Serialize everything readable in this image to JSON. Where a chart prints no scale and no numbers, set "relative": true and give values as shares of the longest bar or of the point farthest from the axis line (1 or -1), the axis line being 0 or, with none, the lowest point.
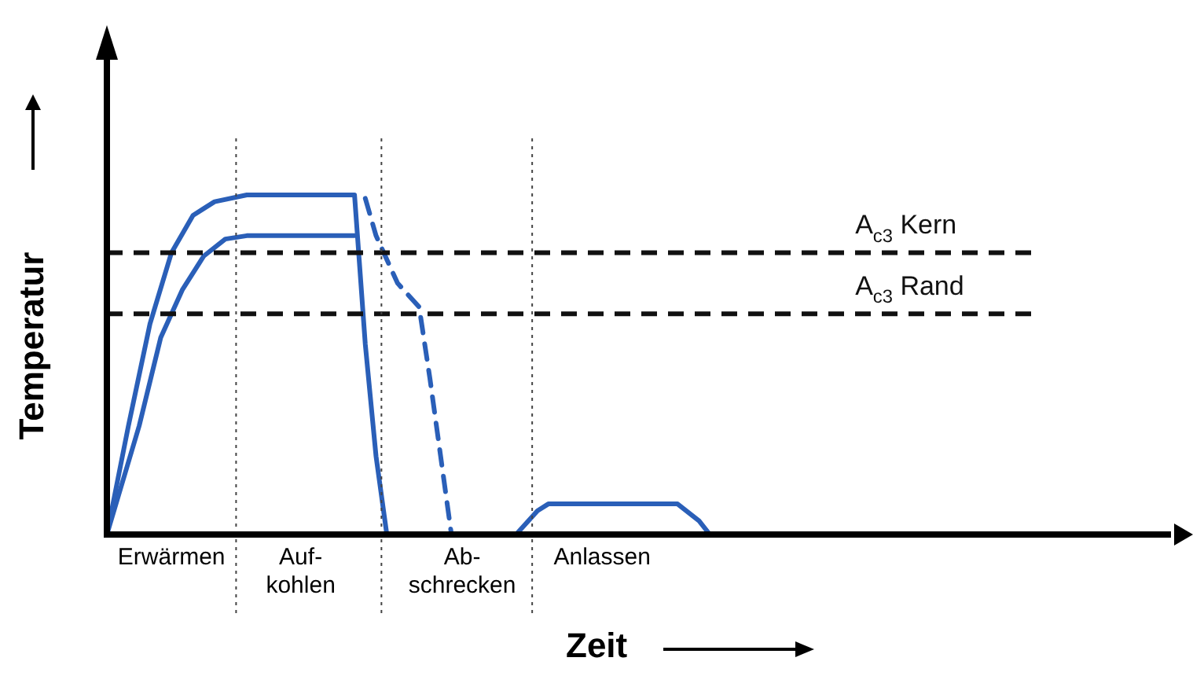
{
  "chart_data": {
    "type": "line",
    "relative": true,
    "xlabel": "Zeit",
    "ylabel": "Temperatur",
    "line_style": "solid",
    "marker": "none",
    "categories": [
      null,
      null,
      null,
      null,
      null,
      null,
      "Erwärmen",
      null,
      null,
      null,
      null,
      null,
      null,
      null,
      null,
      null,
      null,
      null,
      "Auf-\nkohlen",
      null,
      null,
      null,
      null,
      null,
      null,
      null,
      null,
      null,
      null,
      null,
      null,
      null,
      null,
      "Ab-\nschrecken",
      null,
      null,
      null,
      null,
      null,
      null,
      null,
      null,
      null,
      null,
      null,
      null,
      "Anlassen",
      null,
      null,
      null,
      null,
      null,
      null,
      null,
      null,
      null,
      null,
      null,
      null,
      null,
      null,
      null,
      null,
      null,
      null,
      null,
      null,
      null,
      null,
      null,
      null,
      null,
      null,
      null,
      null,
      null,
      null,
      null,
      null,
      null,
      null,
      null,
      null,
      null,
      null,
      null,
      null,
      null,
      null,
      null,
      null,
      null,
      null,
      null,
      null,
      null,
      null,
      null,
      null,
      null,
      null
    ],
    "series": [
      {
        "color": "#2a5fb8",
        "values": [
          0,
          null,
          0.32,
          null,
          0.62,
          null,
          0.83,
          null,
          0.94,
          null,
          0.98,
          null,
          null,
          1,
          null,
          null,
          null,
          null,
          null,
          null,
          null,
          null,
          null,
          1,
          0.56,
          0.23,
          0,
          null,
          null,
          null,
          null,
          null,
          null,
          null,
          null,
          null,
          null,
          null,
          null,
          null,
          null,
          null,
          null,
          null,
          null,
          null,
          null,
          null,
          null,
          null,
          null,
          null,
          null,
          null,
          null,
          null,
          null,
          null,
          null,
          null,
          null,
          null,
          null,
          null,
          null,
          null,
          null,
          null,
          null,
          null,
          null,
          null,
          null,
          null,
          null,
          null,
          null,
          null,
          null,
          null,
          null,
          null,
          null,
          null,
          null,
          null,
          null,
          null,
          null,
          null,
          null,
          null,
          null,
          null,
          null,
          null,
          null,
          null,
          null,
          null,
          null
        ]
      },
      {
        "color": "#2a5fb8",
        "values": [
          0,
          null,
          null,
          0.32,
          null,
          0.58,
          null,
          0.72,
          null,
          0.82,
          null,
          0.87,
          null,
          0.88,
          null,
          null,
          null,
          null,
          null,
          null,
          null,
          null,
          null,
          0.88,
          null,
          null,
          null,
          null,
          null,
          null,
          null,
          null,
          null,
          null,
          null,
          null,
          null,
          null,
          null,
          null,
          null,
          null,
          null,
          null,
          null,
          null,
          null,
          null,
          null,
          null,
          null,
          null,
          null,
          null,
          null,
          null,
          null,
          null,
          null,
          null,
          null,
          null,
          null,
          null,
          null,
          null,
          null,
          null,
          null,
          null,
          null,
          null,
          null,
          null,
          null,
          null,
          null,
          null,
          null,
          null,
          null,
          null,
          null,
          null,
          null,
          null,
          null,
          null,
          null,
          null,
          null,
          null,
          null,
          null,
          null,
          null,
          null,
          null,
          null,
          null,
          null
        ]
      },
      {
        "color": "#2a5fb8",
        "line_style": "dashed",
        "values": [
          null,
          null,
          null,
          null,
          null,
          null,
          null,
          null,
          null,
          null,
          null,
          null,
          null,
          null,
          null,
          null,
          null,
          null,
          null,
          null,
          null,
          null,
          null,
          null,
          0.99,
          0.88,
          null,
          0.74,
          null,
          0.67,
          0.46,
          0.23,
          0,
          null,
          null,
          null,
          null,
          null,
          null,
          null,
          null,
          null,
          null,
          null,
          null,
          null,
          null,
          null,
          null,
          null,
          null,
          null,
          null,
          null,
          null,
          null,
          null,
          null,
          null,
          null,
          null,
          null,
          null,
          null,
          null,
          null,
          null,
          null,
          null,
          null,
          null,
          null,
          null,
          null,
          null,
          null,
          null,
          null,
          null,
          null,
          null,
          null,
          null,
          null,
          null,
          null,
          null,
          null,
          null,
          null,
          null,
          null,
          null,
          null,
          null,
          null,
          null,
          null,
          null,
          null,
          null
        ]
      },
      {
        "color": "#2a5fb8",
        "values": [
          null,
          null,
          null,
          null,
          null,
          null,
          null,
          null,
          null,
          null,
          null,
          null,
          null,
          null,
          null,
          null,
          null,
          null,
          null,
          null,
          null,
          null,
          null,
          null,
          null,
          null,
          null,
          null,
          null,
          null,
          null,
          null,
          null,
          null,
          null,
          null,
          null,
          null,
          0,
          null,
          0.07,
          0.09,
          null,
          null,
          null,
          null,
          null,
          null,
          null,
          null,
          null,
          null,
          null,
          0.09,
          null,
          0.04,
          0,
          null,
          null,
          null,
          null,
          null,
          null,
          null,
          null,
          null,
          null,
          null,
          null,
          null,
          null,
          null,
          null,
          null,
          null,
          null,
          null,
          null,
          null,
          null,
          null,
          null,
          null,
          null,
          null,
          null,
          null,
          null,
          null,
          null,
          null,
          null,
          null,
          null,
          null,
          null,
          null,
          null,
          null,
          null,
          null
        ]
      }
    ],
    "ref_lines": [
      {
        "axis": "y",
        "value": 0.83,
        "label": "A$_{c3}$ Kern",
        "line_style": "dashed",
        "color": "#111111"
      },
      {
        "axis": "y",
        "value": 0.65,
        "label": "A$_{c3}$ Rand",
        "line_style": "dashed",
        "color": "#111111"
      }
    ]
  }
}
